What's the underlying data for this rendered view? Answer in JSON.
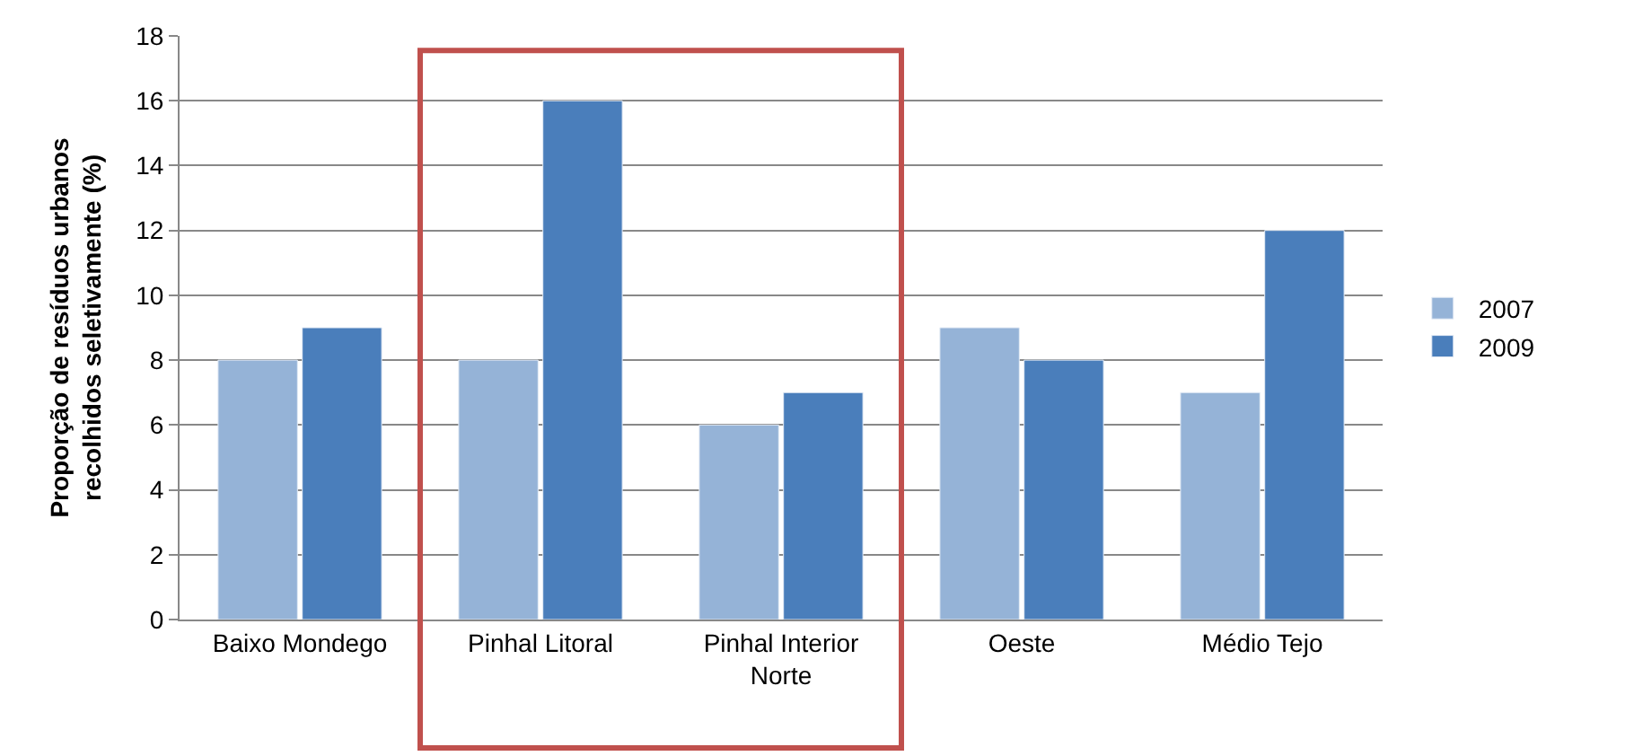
{
  "chart_data": {
    "type": "bar",
    "categories": [
      "Baixo Mondego",
      "Pinhal Litoral",
      "Pinhal Interior Norte",
      "Oeste",
      "Médio Tejo"
    ],
    "series": [
      {
        "name": "2007",
        "color": "#95b3d7",
        "values": [
          8,
          8,
          6,
          9,
          7
        ]
      },
      {
        "name": "2009",
        "color": "#4a7ebb",
        "values": [
          9,
          16,
          7,
          8,
          12
        ]
      }
    ],
    "ylabel": "Proporção de resíduos urbanos recolhidos seletivamente (%)",
    "ylim": [
      0,
      18
    ],
    "yticks": [
      0,
      2,
      4,
      6,
      8,
      10,
      12,
      14,
      16,
      18
    ],
    "grid": "y",
    "legend": "right"
  }
}
